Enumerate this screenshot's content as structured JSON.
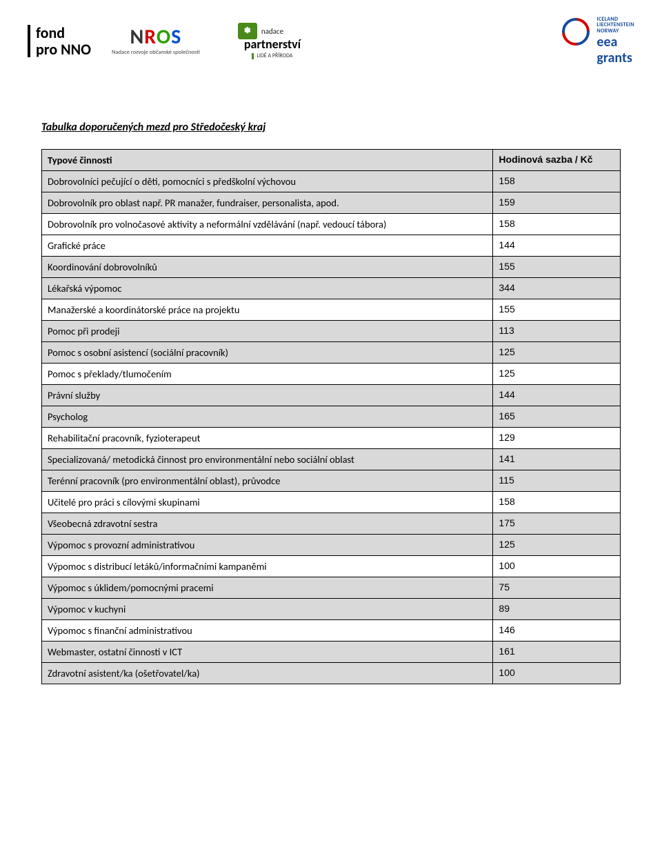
{
  "header": {
    "logo_fond": {
      "line1": "fond",
      "line2": "pro NNO"
    },
    "logo_nros": {
      "big_text": "NROS",
      "sub": "Nadace rozvoje občanské společnosti"
    },
    "logo_part": {
      "square_text": "✽",
      "top_text": "nadace",
      "main": "partnerství",
      "sub": "LIDÉ A PŘÍRODA"
    },
    "logo_eea": {
      "line1": "ICELAND",
      "line2": "LIECHTENSTEIN",
      "line3": "NORWAY",
      "big1": "eea",
      "big2": "grants"
    }
  },
  "title": "Tabulka doporučených mezd pro Středočeský kraj",
  "table": {
    "header_activity": "Typové činnosti",
    "header_rate": "Hodinová sazba / Kč",
    "rows": [
      {
        "activity": "Dobrovolníci pečující o děti, pomocníci s předškolní výchovou",
        "rate": "158"
      },
      {
        "activity": "Dobrovolník pro oblast např. PR manažer, fundraiser, personalista, apod.",
        "rate": "159"
      },
      {
        "activity": "Dobrovolník pro volnočasové aktivity a neformální vzdělávání (např. vedoucí tábora)",
        "rate": "158"
      },
      {
        "activity": "Grafické práce",
        "rate": "144"
      },
      {
        "activity": "Koordinování dobrovolníků",
        "rate": "155"
      },
      {
        "activity": "Lékařská výpomoc",
        "rate": "344"
      },
      {
        "activity": "Manažerské a koordinátorské práce na projektu",
        "rate": "155"
      },
      {
        "activity": "Pomoc při prodeji",
        "rate": "113"
      },
      {
        "activity": "Pomoc s osobní asistencí (sociální pracovník)",
        "rate": "125"
      },
      {
        "activity": "Pomoc s překlady/tlumočením",
        "rate": "125"
      },
      {
        "activity": "Právní služby",
        "rate": "144"
      },
      {
        "activity": "Psycholog",
        "rate": "165"
      },
      {
        "activity": "Rehabilitační pracovník, fyzioterapeut",
        "rate": "129"
      },
      {
        "activity": "Specializovaná/ metodická činnost pro environmentální nebo sociální oblast",
        "rate": "141"
      },
      {
        "activity": "Terénní pracovník (pro environmentální oblast), průvodce",
        "rate": "115"
      },
      {
        "activity": "Učitelé pro práci s cílovými skupinami",
        "rate": "158"
      },
      {
        "activity": "Všeobecná zdravotní sestra",
        "rate": "175"
      },
      {
        "activity": "Výpomoc s provozní administrativou",
        "rate": "125"
      },
      {
        "activity": "Výpomoc s distribucí letáků/informačními kampaněmi",
        "rate": "100"
      },
      {
        "activity": "Výpomoc s úklidem/pomocnými pracemi",
        "rate": "75"
      },
      {
        "activity": "Výpomoc v kuchyni",
        "rate": "89"
      },
      {
        "activity": "Výpomoc s finanční administrativou",
        "rate": "146"
      },
      {
        "activity": "Webmaster, ostatní činnosti v ICT",
        "rate": "161"
      },
      {
        "activity": "Zdravotní asistent/ka (ošetřovatel/ka)",
        "rate": "100"
      }
    ],
    "shaded_row_indices": [
      0,
      1,
      4,
      5,
      7,
      8,
      10,
      11,
      13,
      14,
      16,
      17,
      19,
      20,
      22,
      23
    ],
    "row_shade_color": "#d9d9d9",
    "border_color": "#000000",
    "text_color": "#000000",
    "font_family": "Calibri",
    "rate_font_family": "Arial",
    "header_bg": "#d9d9d9"
  },
  "colors": {
    "eea_blue": "#164b9c",
    "eea_red": "#d40000",
    "nros_green": "#4a8a1a"
  }
}
